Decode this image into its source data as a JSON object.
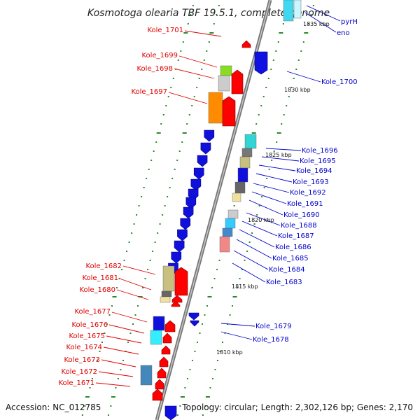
{
  "title": "Kosmotoga olearia TBF 19.5.1, complete genome",
  "footer": {
    "accession": "Accession: NC_012785",
    "summary": "Topology: circular; Length: 2,302,126 bp; Genes: 2,170"
  },
  "colors": {
    "forward_label": "#e00000",
    "reverse_label": "#0000cc",
    "backbone": "#888888",
    "tick": "#2a8a2a"
  },
  "kbp_marks": [
    "1835 kbp",
    "1830 kbp",
    "1825 kbp",
    "1820 kbp",
    "1815 kbp",
    "1810 kbp"
  ],
  "genes_forward": [
    "Kole_1701",
    "Kole_1699",
    "Kole_1698",
    "Kole_1697",
    "Kole_1682",
    "Kole_1681",
    "Kole_1680",
    "Kole_1677",
    "Kole_1676",
    "Kole_1675",
    "Kole_1674",
    "Kole_1673",
    "Kole_1672",
    "Kole_1671"
  ],
  "genes_reverse": [
    "pyrH",
    "eno",
    "Kole_1700",
    "Kole_1696",
    "Kole_1695",
    "Kole_1694",
    "Kole_1693",
    "Kole_1692",
    "Kole_1691",
    "Kole_1690",
    "Kole_1688",
    "Kole_1687",
    "Kole_1686",
    "Kole_1685",
    "Kole_1684",
    "Kole_1683",
    "Kole_1679",
    "Kole_1678"
  ]
}
